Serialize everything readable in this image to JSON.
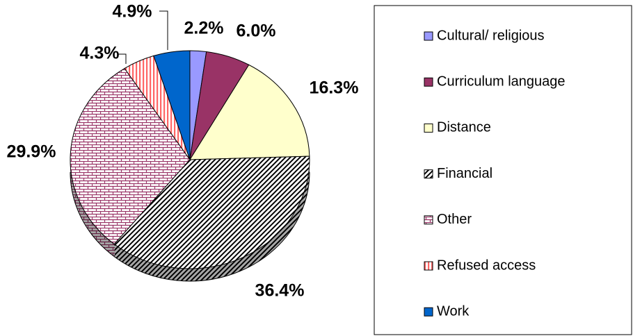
{
  "chart_data": {
    "type": "pie",
    "categories": [
      "Cultural/ religious",
      "Curriculum language",
      "Distance",
      "Financial",
      "Other",
      "Refused access",
      "Work"
    ],
    "values": [
      2.2,
      6.0,
      16.3,
      36.4,
      29.9,
      4.3,
      4.9
    ],
    "value_labels": [
      "2.2%",
      "6.0%",
      "16.3%",
      "36.4%",
      "29.9%",
      "4.3%",
      "4.9%"
    ],
    "colors": [
      "#9999ff",
      "#993366",
      "#ffffcc",
      "#000000",
      "#993366",
      "#ff6666",
      "#0066cc"
    ],
    "patterns": [
      "solid",
      "solid",
      "solid",
      "diagonal",
      "brick",
      "vertical",
      "solid"
    ],
    "legend": "right"
  }
}
